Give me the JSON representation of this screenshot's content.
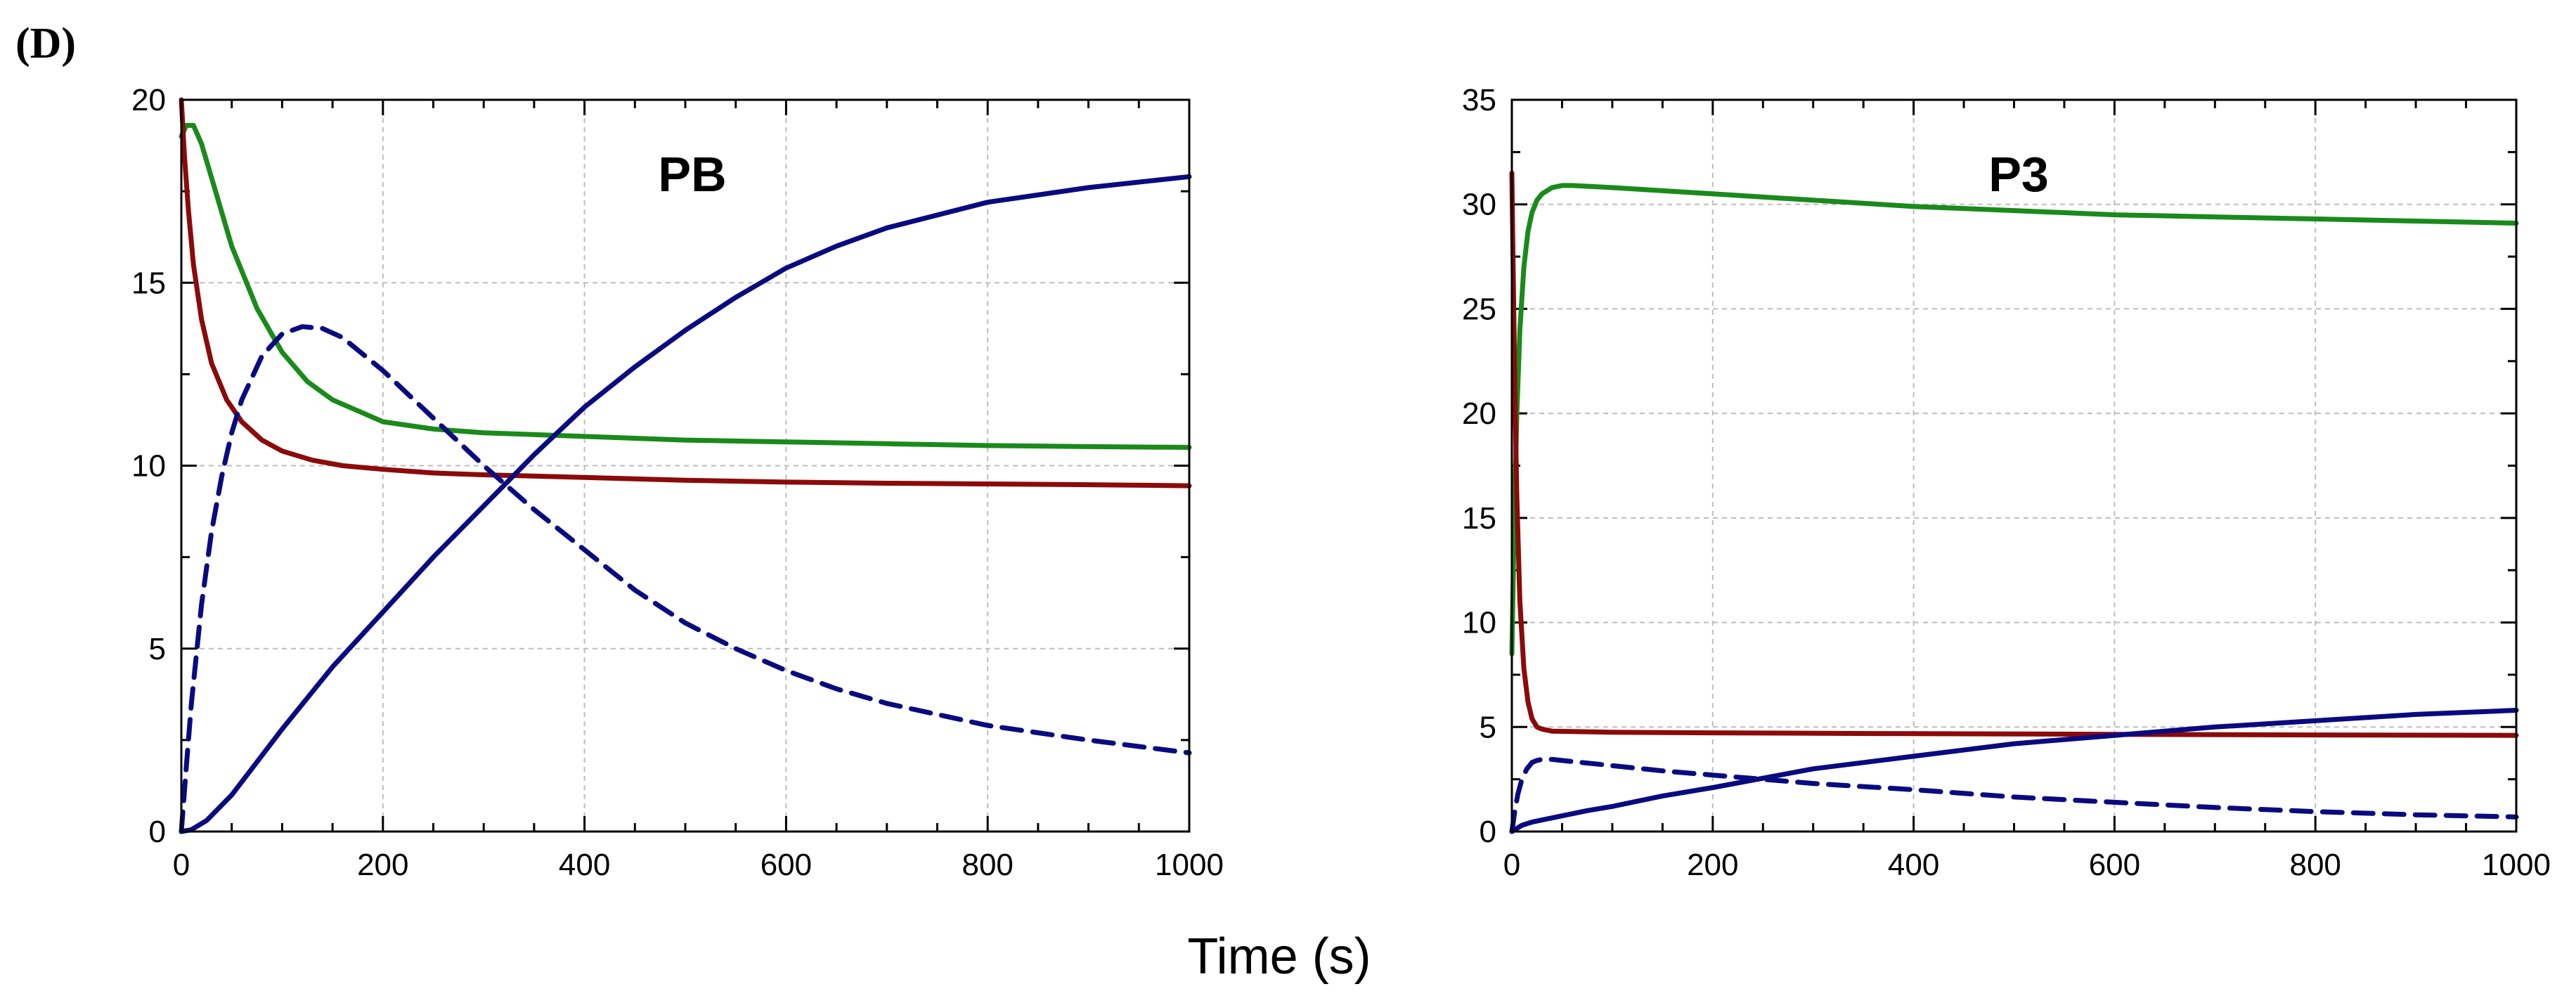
{
  "figure_label": "(D)",
  "shared_xlabel": "Time (s)",
  "chart_data": [
    {
      "type": "line",
      "title": "PB",
      "xlabel": "Time (s)",
      "ylabel": "",
      "xlim": [
        0,
        1000
      ],
      "ylim": [
        0,
        20
      ],
      "xticks": [
        0,
        200,
        400,
        600,
        800,
        1000
      ],
      "yticks": [
        0,
        5,
        10,
        15,
        20
      ],
      "xtick_labels": [
        "0",
        "200",
        "400",
        "600",
        "800",
        "1000"
      ],
      "ytick_labels": [
        "0",
        "5",
        "10",
        "15",
        "20"
      ],
      "grid": true,
      "series": [
        {
          "name": "green",
          "color": "#1a8a1a",
          "style": "solid",
          "x": [
            0,
            5,
            12,
            20,
            35,
            50,
            75,
            100,
            125,
            150,
            200,
            250,
            300,
            400,
            500,
            600,
            700,
            800,
            900,
            1000
          ],
          "y": [
            19.0,
            19.3,
            19.3,
            18.8,
            17.4,
            16.0,
            14.3,
            13.1,
            12.3,
            11.8,
            11.2,
            11.0,
            10.9,
            10.8,
            10.7,
            10.65,
            10.6,
            10.55,
            10.52,
            10.5
          ]
        },
        {
          "name": "dark red",
          "color": "#8b0a0a",
          "style": "solid",
          "x": [
            0,
            3,
            7,
            12,
            20,
            30,
            45,
            60,
            80,
            100,
            130,
            160,
            200,
            250,
            300,
            400,
            500,
            600,
            700,
            800,
            900,
            1000
          ],
          "y": [
            20.0,
            18.5,
            17.0,
            15.5,
            14.0,
            12.8,
            11.8,
            11.2,
            10.7,
            10.4,
            10.15,
            10.0,
            9.9,
            9.8,
            9.75,
            9.68,
            9.6,
            9.55,
            9.52,
            9.5,
            9.48,
            9.45
          ]
        },
        {
          "name": "navy dashed",
          "color": "#0a0a80",
          "style": "dashed",
          "x": [
            0,
            5,
            10,
            20,
            30,
            40,
            50,
            60,
            80,
            100,
            120,
            140,
            160,
            200,
            250,
            300,
            350,
            400,
            450,
            500,
            550,
            600,
            650,
            700,
            800,
            900,
            1000
          ],
          "y": [
            0,
            1.8,
            3.5,
            6.2,
            8.2,
            9.7,
            10.9,
            11.8,
            13.0,
            13.6,
            13.8,
            13.75,
            13.5,
            12.6,
            11.3,
            10.0,
            8.8,
            7.7,
            6.6,
            5.7,
            5.0,
            4.4,
            3.9,
            3.5,
            2.9,
            2.5,
            2.15
          ]
        },
        {
          "name": "navy solid",
          "color": "#0a0a80",
          "style": "solid",
          "x": [
            0,
            10,
            25,
            50,
            75,
            100,
            150,
            200,
            250,
            300,
            350,
            400,
            450,
            500,
            550,
            600,
            650,
            700,
            800,
            900,
            1000
          ],
          "y": [
            0,
            0.05,
            0.3,
            1.0,
            1.9,
            2.8,
            4.5,
            6.0,
            7.5,
            8.9,
            10.3,
            11.6,
            12.7,
            13.7,
            14.6,
            15.4,
            16.0,
            16.5,
            17.2,
            17.6,
            17.9
          ]
        }
      ]
    },
    {
      "type": "line",
      "title": "P3",
      "xlabel": "Time (s)",
      "ylabel": "",
      "xlim": [
        0,
        1000
      ],
      "ylim": [
        0,
        35
      ],
      "xticks": [
        0,
        200,
        400,
        600,
        800,
        1000
      ],
      "yticks": [
        0,
        5,
        10,
        15,
        20,
        25,
        30,
        35
      ],
      "xtick_labels": [
        "0",
        "200",
        "400",
        "600",
        "800",
        "1000"
      ],
      "ytick_labels": [
        "0",
        "5",
        "10",
        "15",
        "20",
        "25",
        "30",
        "35"
      ],
      "grid": true,
      "series": [
        {
          "name": "green",
          "color": "#1a8a1a",
          "style": "solid",
          "x": [
            0,
            2,
            5,
            8,
            12,
            16,
            20,
            25,
            30,
            40,
            50,
            60,
            80,
            100,
            200,
            300,
            400,
            500,
            600,
            700,
            800,
            900,
            1000
          ],
          "y": [
            8.5,
            14.0,
            20.0,
            24.0,
            27.0,
            28.7,
            29.6,
            30.2,
            30.5,
            30.8,
            30.9,
            30.9,
            30.85,
            30.8,
            30.5,
            30.2,
            29.9,
            29.7,
            29.5,
            29.4,
            29.3,
            29.2,
            29.1
          ]
        },
        {
          "name": "dark red",
          "color": "#8b0a0a",
          "style": "solid",
          "x": [
            0,
            1,
            3,
            5,
            8,
            12,
            16,
            20,
            25,
            30,
            40,
            60,
            100,
            200,
            400,
            600,
            800,
            1000
          ],
          "y": [
            31.5,
            28.0,
            21.0,
            16.0,
            11.0,
            7.8,
            6.2,
            5.4,
            5.0,
            4.9,
            4.8,
            4.78,
            4.75,
            4.72,
            4.68,
            4.65,
            4.62,
            4.6
          ]
        },
        {
          "name": "navy dashed",
          "color": "#0a0a80",
          "style": "dashed",
          "x": [
            0,
            3,
            6,
            10,
            15,
            20,
            25,
            30,
            40,
            50,
            60,
            80,
            100,
            150,
            200,
            300,
            400,
            500,
            600,
            700,
            800,
            900,
            1000
          ],
          "y": [
            0,
            1.0,
            1.8,
            2.5,
            3.0,
            3.3,
            3.4,
            3.45,
            3.45,
            3.4,
            3.35,
            3.25,
            3.15,
            2.9,
            2.7,
            2.3,
            2.0,
            1.65,
            1.4,
            1.15,
            0.95,
            0.8,
            0.7
          ]
        },
        {
          "name": "navy solid",
          "color": "#0a0a80",
          "style": "solid",
          "x": [
            0,
            5,
            10,
            20,
            30,
            50,
            75,
            100,
            150,
            200,
            300,
            400,
            500,
            600,
            700,
            800,
            900,
            1000
          ],
          "y": [
            0,
            0.15,
            0.3,
            0.45,
            0.55,
            0.75,
            1.0,
            1.2,
            1.7,
            2.1,
            3.0,
            3.6,
            4.2,
            4.6,
            5.0,
            5.3,
            5.6,
            5.8
          ]
        }
      ]
    }
  ]
}
